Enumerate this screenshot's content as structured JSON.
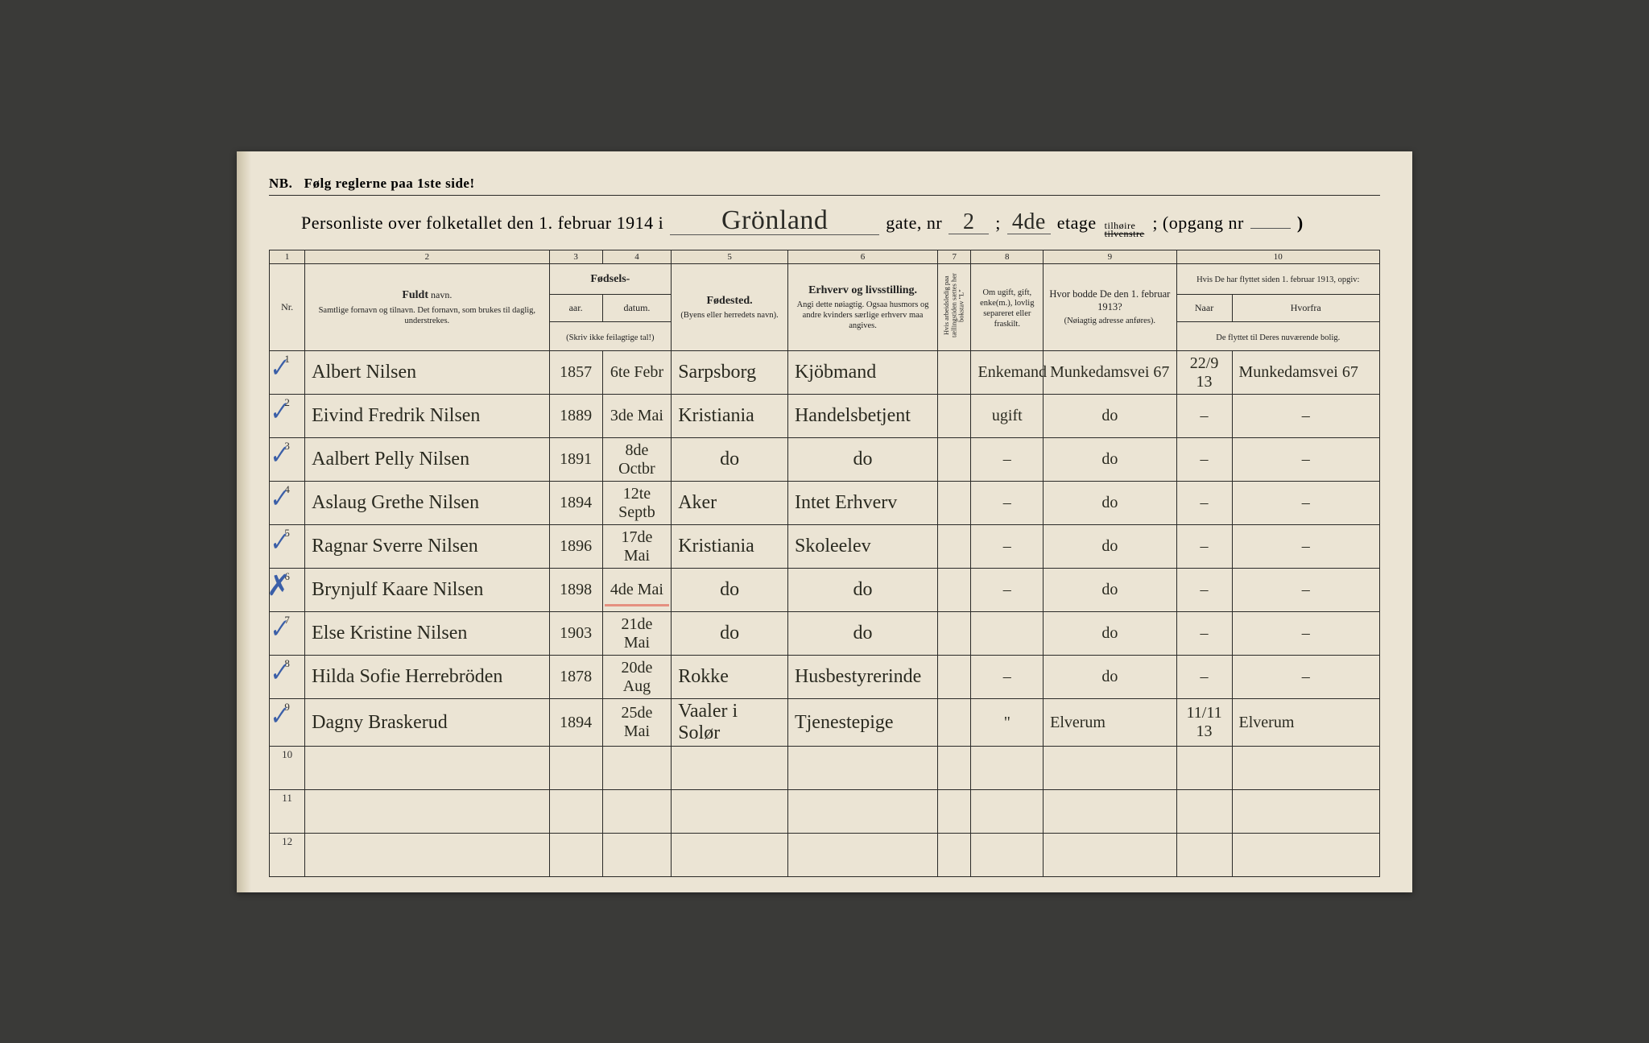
{
  "page": {
    "background": "#ebe4d4",
    "ink": "#2a2a28",
    "handwriting_color": "#2a2a20",
    "blue_pencil": "#3b5fa8",
    "red_pencil": "#e47a6a"
  },
  "header": {
    "nb_prefix": "NB.",
    "nb_text": "Følg reglerne paa 1ste side!",
    "title_prefix": "Personliste over folketallet den 1. februar 1914 i",
    "street": "Grönland",
    "gate_label": "gate, nr",
    "gate_nr": "2",
    "semicolon": ";",
    "etage_val": "4de",
    "etage_label": "etage",
    "tilhoire_top": "tilhøire",
    "tilhoire_bot": "tilvenstre",
    "opgang_label": "; (opgang nr",
    "opgang_val": "",
    "opgang_close": ")"
  },
  "column_numbers": [
    "1",
    "2",
    "3",
    "4",
    "5",
    "6",
    "7",
    "8",
    "9",
    "10"
  ],
  "columns": {
    "nr": "Nr.",
    "name_bold": "Fuldt",
    "name_rest": "navn.",
    "name_sub": "Samtlige fornavn og tilnavn. Det fornavn, som brukes til daglig, understrekes.",
    "fodsels": "Fødsels-",
    "aar": "aar.",
    "datum": "datum.",
    "fodsels_sub": "(Skriv ikke feilagtige tal!)",
    "fodested_bold": "Fødested.",
    "fodested_sub": "(Byens eller herredets navn).",
    "erhverv_bold": "Erhverv og livsstilling.",
    "erhverv_sub": "Angi dette nøiagtig. Ogsaa husmors og andre kvinders særlige erhverv maa angives.",
    "arbeidsledig": "Hvis arbeidsledig paa tællingstiden sættes her bokstav \"L\"",
    "gift": "Om ugift, gift, enke(m.), lovlig separeret eller fraskilt.",
    "bodde_bold": "Hvor bodde De den 1. februar 1913?",
    "bodde_sub": "(Nøiagtig adresse anføres).",
    "flyttet_top": "Hvis De har flyttet siden 1. februar 1913, opgiv:",
    "naar": "Naar",
    "hvorfra": "Hvorfra",
    "flyttet_sub": "De flyttet til Deres nuværende bolig."
  },
  "rows": [
    {
      "nr": "1",
      "mark": "check",
      "name": "Albert Nilsen",
      "aar": "1857",
      "datum": "6te Febr",
      "fodested": "Sarpsborg",
      "erhverv": "Kjöbmand",
      "gift": "Enkemand",
      "bodde": "Munkedamsvei 67",
      "naar": "22/9 13",
      "hvorfra": "Munkedamsvei 67"
    },
    {
      "nr": "2",
      "mark": "check",
      "name": "Eivind Fredrik Nilsen",
      "aar": "1889",
      "datum": "3de Mai",
      "fodested": "Kristiania",
      "erhverv": "Handelsbetjent",
      "gift": "ugift",
      "bodde": "do",
      "naar": "–",
      "hvorfra": "–"
    },
    {
      "nr": "3",
      "mark": "check",
      "name": "Aalbert Pelly Nilsen",
      "aar": "1891",
      "datum": "8de Octbr",
      "fodested": "do",
      "erhverv": "do",
      "gift": "–",
      "bodde": "do",
      "naar": "–",
      "hvorfra": "–"
    },
    {
      "nr": "4",
      "mark": "check",
      "name": "Aslaug Grethe Nilsen",
      "aar": "1894",
      "datum": "12te Septb",
      "fodested": "Aker",
      "erhverv": "Intet Erhverv",
      "gift": "–",
      "bodde": "do",
      "naar": "–",
      "hvorfra": "–"
    },
    {
      "nr": "5",
      "mark": "check",
      "name": "Ragnar Sverre Nilsen",
      "aar": "1896",
      "datum": "17de Mai",
      "fodested": "Kristiania",
      "erhverv": "Skoleelev",
      "gift": "–",
      "bodde": "do",
      "naar": "–",
      "hvorfra": "–"
    },
    {
      "nr": "6",
      "mark": "x",
      "redline": true,
      "name": "Brynjulf Kaare Nilsen",
      "aar": "1898",
      "datum": "4de Mai",
      "fodested": "do",
      "erhverv": "do",
      "gift": "–",
      "bodde": "do",
      "naar": "–",
      "hvorfra": "–"
    },
    {
      "nr": "7",
      "mark": "check",
      "name": "Else Kristine Nilsen",
      "aar": "1903",
      "datum": "21de Mai",
      "fodested": "do",
      "erhverv": "do",
      "gift": "",
      "bodde": "do",
      "naar": "–",
      "hvorfra": "–"
    },
    {
      "nr": "8",
      "mark": "check",
      "name": "Hilda Sofie Herrebröden",
      "aar": "1878",
      "datum": "20de Aug",
      "fodested": "Rokke",
      "erhverv": "Husbestyrerinde",
      "gift": "–",
      "bodde": "do",
      "naar": "–",
      "hvorfra": "–"
    },
    {
      "nr": "9",
      "mark": "check",
      "name": "Dagny Braskerud",
      "aar": "1894",
      "datum": "25de Mai",
      "fodested": "Vaaler i Solør",
      "erhverv": "Tjenestepige",
      "gift": "\"",
      "bodde": "Elverum",
      "naar": "11/11 13",
      "hvorfra": "Elverum"
    },
    {
      "nr": "10",
      "name": "",
      "aar": "",
      "datum": "",
      "fodested": "",
      "erhverv": "",
      "gift": "",
      "bodde": "",
      "naar": "",
      "hvorfra": ""
    },
    {
      "nr": "11",
      "name": "",
      "aar": "",
      "datum": "",
      "fodested": "",
      "erhverv": "",
      "gift": "",
      "bodde": "",
      "naar": "",
      "hvorfra": ""
    },
    {
      "nr": "12",
      "name": "",
      "aar": "",
      "datum": "",
      "fodested": "",
      "erhverv": "",
      "gift": "",
      "bodde": "",
      "naar": "",
      "hvorfra": ""
    }
  ]
}
